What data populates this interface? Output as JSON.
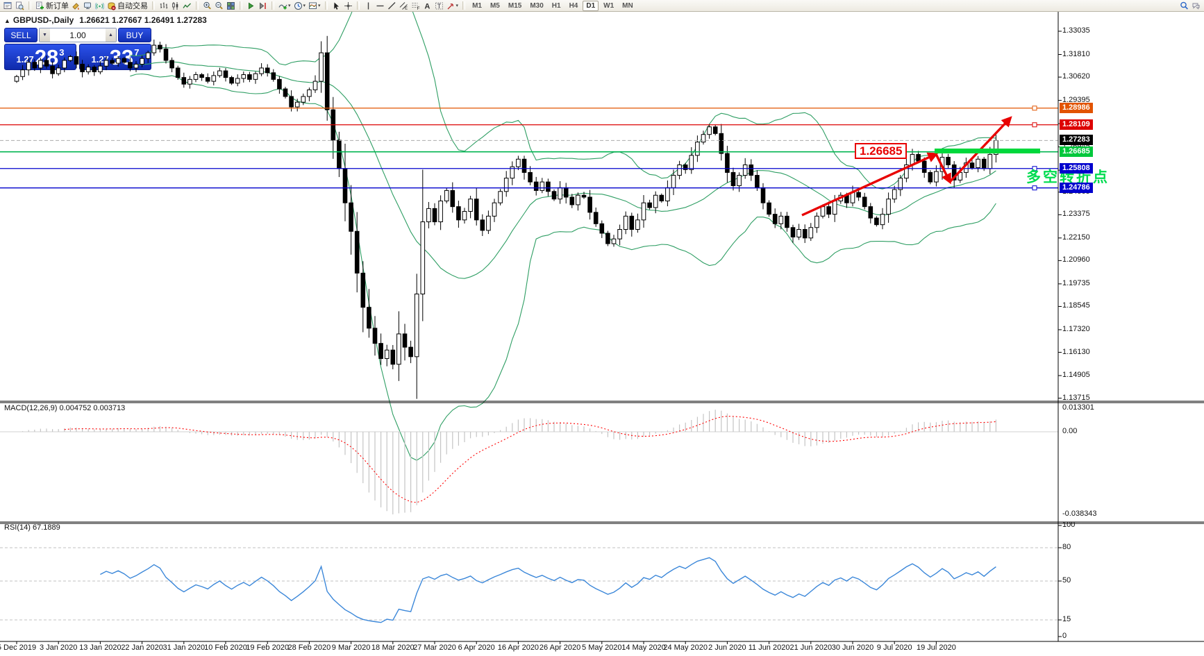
{
  "toolbar": {
    "items": [
      {
        "icon": "charts-window-icon"
      },
      {
        "icon": "data-preview-icon"
      },
      {
        "sep": true
      },
      {
        "icon": "new-order-icon",
        "label": "新订单"
      },
      {
        "icon": "styler-icon"
      },
      {
        "icon": "terminal-icon"
      },
      {
        "icon": "signals-icon"
      },
      {
        "icon": "autotrading-icon",
        "label": "自动交易"
      },
      {
        "sep": true
      },
      {
        "icon": "bar-chart-icon"
      },
      {
        "icon": "candlestick-chart-icon"
      },
      {
        "icon": "line-chart-icon"
      },
      {
        "sep": true
      },
      {
        "icon": "zoom-in-icon"
      },
      {
        "icon": "zoom-out-icon"
      },
      {
        "icon": "tile-windows-icon"
      },
      {
        "sep": true
      },
      {
        "icon": "auto-scroll-icon"
      },
      {
        "icon": "chart-shift-icon"
      },
      {
        "sep": true
      },
      {
        "icon": "indicators-icon",
        "dropdown": true
      },
      {
        "icon": "periods-icon",
        "dropdown": true
      },
      {
        "icon": "template-icon",
        "dropdown": true
      },
      {
        "sep": true
      },
      {
        "icon": "cursor-icon"
      },
      {
        "icon": "crosshair-icon"
      },
      {
        "sep": true
      },
      {
        "icon": "vertical-line-icon"
      },
      {
        "icon": "horizontal-line-icon"
      },
      {
        "icon": "trendline-icon"
      },
      {
        "icon": "equidistant-channel-icon"
      },
      {
        "icon": "fibonacci-icon"
      },
      {
        "icon": "text-icon"
      },
      {
        "icon": "text-label-icon"
      },
      {
        "icon": "arrows-icon",
        "dropdown": true
      },
      {
        "sep": true
      }
    ],
    "periods": [
      "M1",
      "M5",
      "M15",
      "M30",
      "H1",
      "H4",
      "D1",
      "W1",
      "MN"
    ],
    "active_period": "D1",
    "right_icons": [
      {
        "icon": "search-icon"
      },
      {
        "icon": "chat-icon"
      }
    ]
  },
  "trade_panel": {
    "sell_label": "SELL",
    "buy_label": "BUY",
    "volume": "1.00",
    "sell_price": {
      "prefix": "1.27",
      "big": "28",
      "sup": "3"
    },
    "buy_price": {
      "prefix": "1.27",
      "big": "33",
      "sup": "7"
    }
  },
  "chart": {
    "symbol_title": "GBPUSD-,Daily",
    "ohlc_text": "1.26621 1.27667 1.26491 1.27283",
    "price_axis_ticks": [
      "1.33035",
      "1.31810",
      "1.30620",
      "1.29395",
      "1.28170",
      "1.26945",
      "1.25720",
      "1.24565",
      "1.23375",
      "1.22150",
      "1.20960",
      "1.19735",
      "1.18545",
      "1.17320",
      "1.16130",
      "1.14905",
      "1.13715"
    ],
    "price_labels": [
      {
        "text": "1.28986",
        "color": "#e25400"
      },
      {
        "text": "1.28109",
        "color": "#dd0000"
      },
      {
        "text": "1.27283",
        "color": "#000000"
      },
      {
        "text": "1.26685",
        "color": "#00c83c"
      },
      {
        "text": "1.25808",
        "color": "#0000cd"
      },
      {
        "text": "1.24786",
        "color": "#0000cd"
      }
    ],
    "hlines": [
      {
        "price": 1.28986,
        "color": "#e25400",
        "handle": true
      },
      {
        "price": 1.28109,
        "color": "#dd0000",
        "handle": true
      },
      {
        "price": 1.26685,
        "color": "#00b450",
        "handle": false
      },
      {
        "price": 1.25808,
        "color": "#0000cd",
        "handle": true
      },
      {
        "price": 1.24786,
        "color": "#0000cd",
        "handle": true
      }
    ],
    "bid_line": {
      "price": 1.27283,
      "color": "#ababab"
    },
    "annotations": {
      "callout_text": "1.26685",
      "callout_color": "#e80000",
      "note_text": "多空转折点",
      "note_color": "#00dc50",
      "bar_color": "#00d83c",
      "arrow_color": "#e80202"
    }
  },
  "macd": {
    "label": "MACD(12,26,9)",
    "values": "0.004752 0.003713",
    "axis_max": "0.013301",
    "axis_zero": "0.00",
    "axis_min": "-0.038343"
  },
  "rsi": {
    "label": "RSI(14)",
    "value": "67.1889",
    "axis": [
      "100",
      "80",
      "50",
      "15",
      "0"
    ],
    "levels": [
      80,
      50,
      15
    ]
  },
  "chart_data": {
    "type": "candlestick",
    "symbol": "GBPUSD",
    "timeframe": "Daily",
    "first_open": 1.304,
    "closes": [
      1.3065,
      1.31,
      1.314,
      1.311,
      1.315,
      1.312,
      1.308,
      1.311,
      1.315,
      1.317,
      1.313,
      1.309,
      1.3115,
      1.309,
      1.312,
      1.315,
      1.3135,
      1.316,
      1.314,
      1.311,
      1.313,
      1.316,
      1.319,
      1.323,
      1.321,
      1.315,
      1.311,
      1.306,
      1.3025,
      1.305,
      1.3075,
      1.306,
      1.304,
      1.307,
      1.3095,
      1.306,
      1.303,
      1.3055,
      1.3075,
      1.305,
      1.308,
      1.311,
      1.3085,
      1.305,
      1.3,
      1.296,
      1.2905,
      1.293,
      1.296,
      1.2995,
      1.304,
      1.319,
      1.289,
      1.273,
      1.258,
      1.24,
      1.225,
      1.203,
      1.185,
      1.174,
      1.166,
      1.158,
      1.1625,
      1.155,
      1.171,
      1.164,
      1.159,
      1.192,
      1.23,
      1.237,
      1.23,
      1.241,
      1.2465,
      1.238,
      1.231,
      1.2355,
      1.242,
      1.231,
      1.2255,
      1.233,
      1.24,
      1.246,
      1.253,
      1.259,
      1.263,
      1.256,
      1.251,
      1.2465,
      1.251,
      1.246,
      1.242,
      1.248,
      1.243,
      1.239,
      1.244,
      1.243,
      1.235,
      1.229,
      1.224,
      1.2185,
      1.221,
      1.226,
      1.233,
      1.226,
      1.231,
      1.24,
      1.2375,
      1.244,
      1.241,
      1.248,
      1.2545,
      1.26,
      1.2575,
      1.265,
      1.272,
      1.276,
      1.28,
      1.2765,
      1.266,
      1.256,
      1.249,
      1.2545,
      1.26,
      1.2545,
      1.248,
      1.24,
      1.234,
      1.229,
      1.233,
      1.227,
      1.222,
      1.226,
      1.2215,
      1.227,
      1.233,
      1.238,
      1.234,
      1.241,
      1.244,
      1.24,
      1.2455,
      1.243,
      1.238,
      1.232,
      1.2285,
      1.234,
      1.242,
      1.247,
      1.253,
      1.26,
      1.2655,
      1.262,
      1.256,
      1.251,
      1.2565,
      1.264,
      1.26,
      1.252,
      1.256,
      1.261,
      1.2585,
      1.263,
      1.258,
      1.2655,
      1.27283
    ],
    "x_labels": [
      "5 Dec 2019",
      "3 Jan 2020",
      "13 Jan 2020",
      "22 Jan 2020",
      "31 Jan 2020",
      "10 Feb 2020",
      "19 Feb 2020",
      "28 Feb 2020",
      "9 Mar 2020",
      "18 Mar 2020",
      "27 Mar 2020",
      "6 Apr 2020",
      "16 Apr 2020",
      "26 Apr 2020",
      "5 May 2020",
      "14 May 2020",
      "24 May 2020",
      "2 Jun 2020",
      "11 Jun 2020",
      "21 Jun 2020",
      "30 Jun 2020",
      "9 Jul 2020",
      "19 Jul 2020"
    ],
    "price_range": {
      "axis_top": 1.33035,
      "axis_bottom": 1.13715
    },
    "indicators": [
      {
        "name": "Bollinger Bands",
        "period": 20,
        "deviation": 2,
        "color": "#2e9e63"
      },
      {
        "name": "MACD",
        "fast": 12,
        "slow": 26,
        "signal": 9,
        "current": [
          0.004752,
          0.003713
        ]
      },
      {
        "name": "RSI",
        "period": 14,
        "current": 67.1889
      }
    ]
  }
}
